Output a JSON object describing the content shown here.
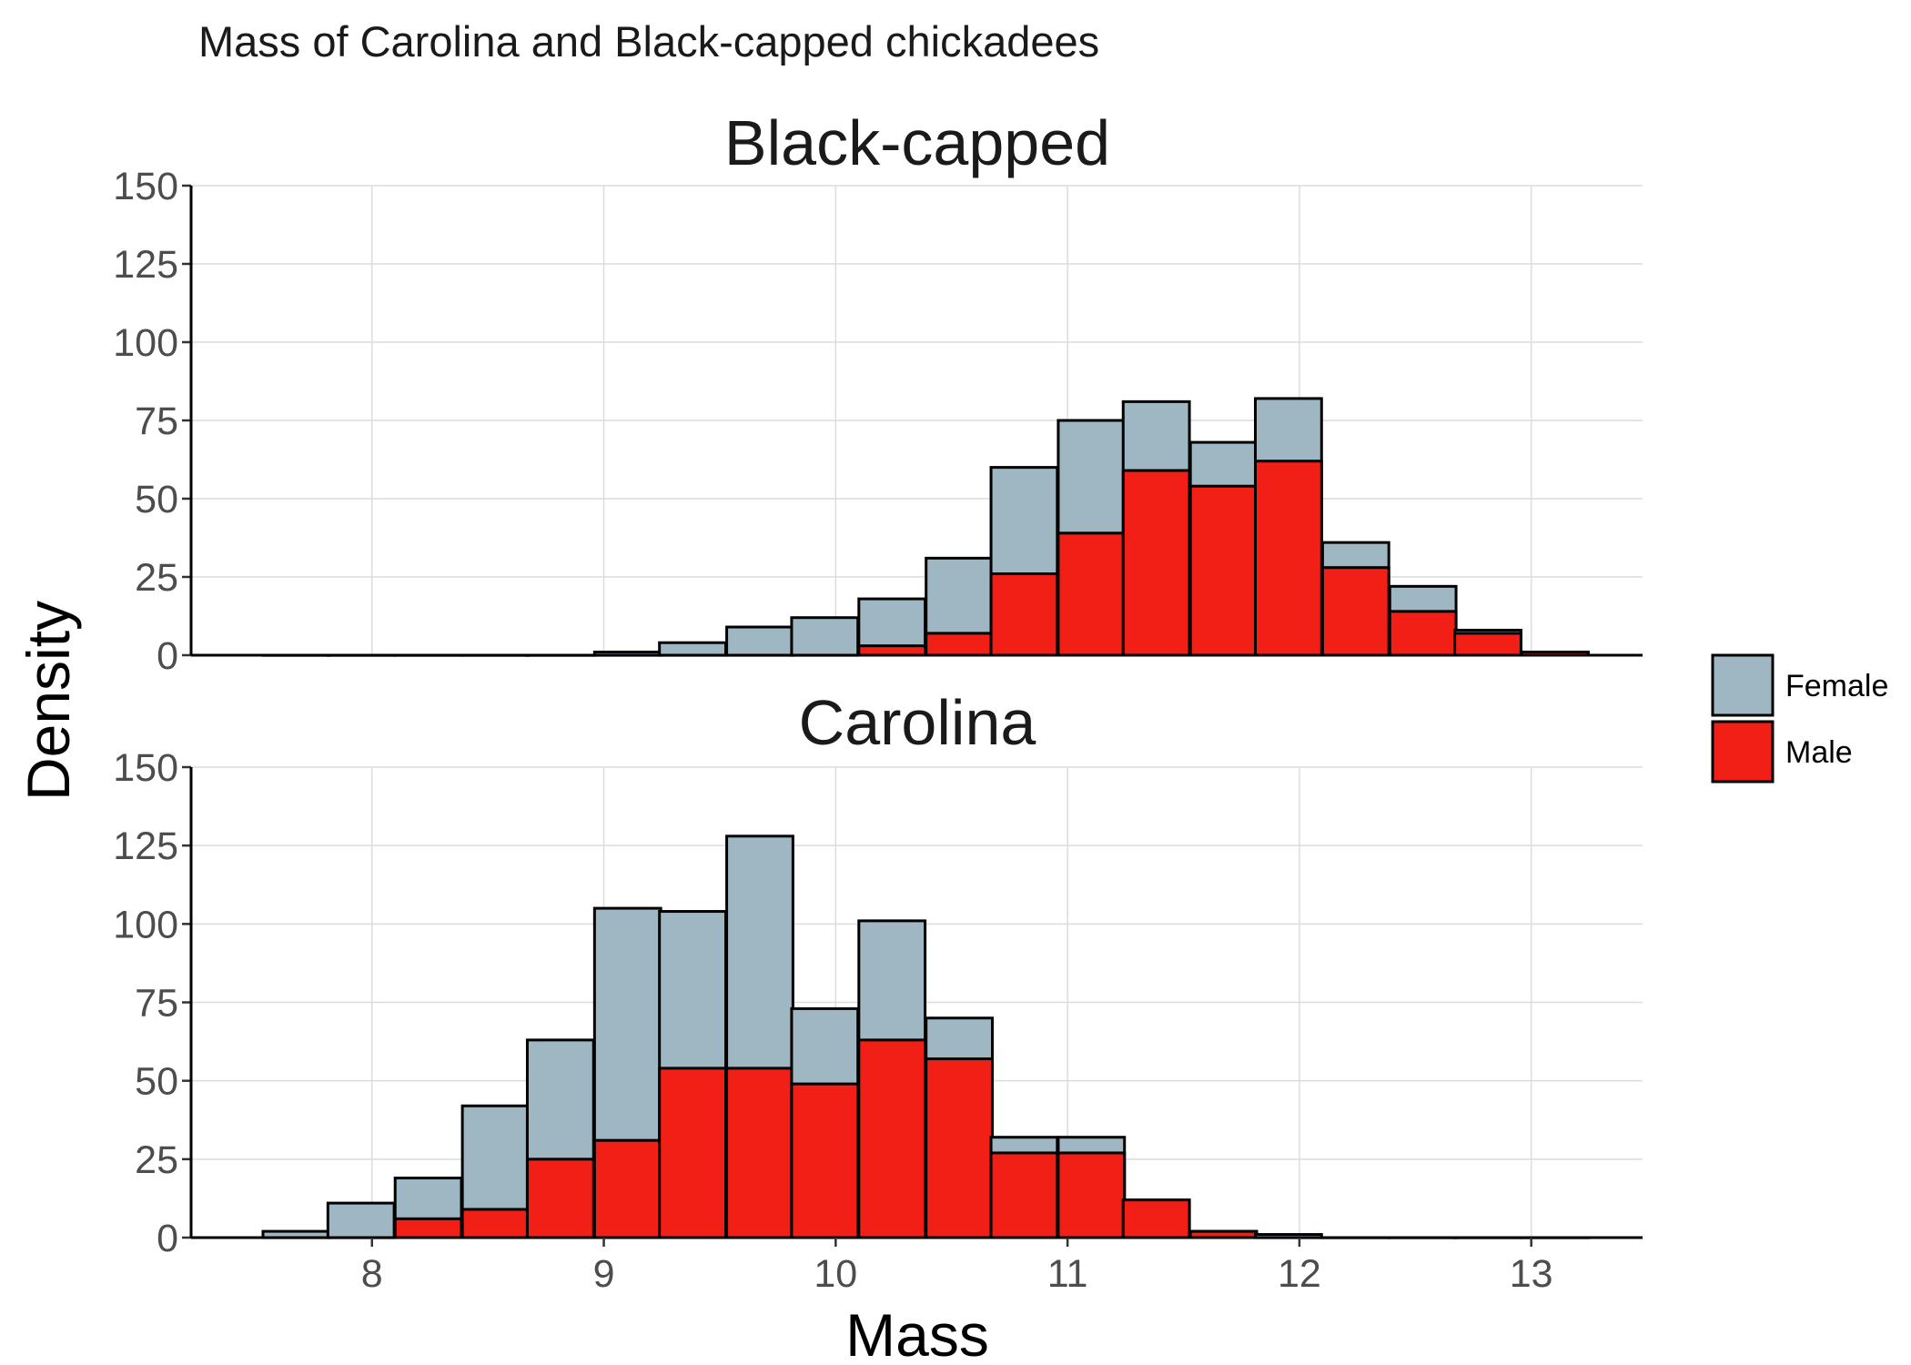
{
  "chart_data": {
    "type": "bar",
    "title": "Mass of Carolina and Black-capped chickadees",
    "xlabel": "Mass",
    "ylabel": "Density",
    "xlim": [
      7.22,
      13.48
    ],
    "ylim": [
      0,
      150
    ],
    "x_ticks": [
      "8",
      "9",
      "10",
      "11",
      "12",
      "13"
    ],
    "y_ticks": [
      "0",
      "25",
      "50",
      "75",
      "100",
      "125",
      "150"
    ],
    "grid": true,
    "stacked": true,
    "bin_width": 0.2857,
    "legend": {
      "position": "right",
      "entries": [
        {
          "name": "Female",
          "color": "#9fb6c3"
        },
        {
          "name": "Male",
          "color": "#f21f17"
        }
      ]
    },
    "facets": [
      {
        "title": "Black-capped",
        "bins": [
          {
            "x0": 7.53,
            "female": 0,
            "male": 0
          },
          {
            "x0": 7.81,
            "female": 0,
            "male": 0
          },
          {
            "x0": 8.1,
            "female": 0,
            "male": 0
          },
          {
            "x0": 8.39,
            "female": 0,
            "male": 0
          },
          {
            "x0": 8.67,
            "female": 0,
            "male": 0
          },
          {
            "x0": 8.96,
            "female": 1,
            "male": 0
          },
          {
            "x0": 9.24,
            "female": 4,
            "male": 0
          },
          {
            "x0": 9.53,
            "female": 9,
            "male": 0
          },
          {
            "x0": 9.81,
            "female": 12,
            "male": 0
          },
          {
            "x0": 10.1,
            "female": 15,
            "male": 3
          },
          {
            "x0": 10.39,
            "female": 24,
            "male": 7
          },
          {
            "x0": 10.67,
            "female": 34,
            "male": 26
          },
          {
            "x0": 10.96,
            "female": 36,
            "male": 39
          },
          {
            "x0": 11.24,
            "female": 22,
            "male": 59
          },
          {
            "x0": 11.53,
            "female": 14,
            "male": 54
          },
          {
            "x0": 11.81,
            "female": 20,
            "male": 62
          },
          {
            "x0": 12.1,
            "female": 8,
            "male": 28
          },
          {
            "x0": 12.39,
            "female": 8,
            "male": 14
          },
          {
            "x0": 12.67,
            "female": 1,
            "male": 7
          },
          {
            "x0": 12.96,
            "female": 0,
            "male": 1
          }
        ]
      },
      {
        "title": "Carolina",
        "bins": [
          {
            "x0": 7.53,
            "female": 2,
            "male": 0
          },
          {
            "x0": 7.81,
            "female": 11,
            "male": 0
          },
          {
            "x0": 8.1,
            "female": 13,
            "male": 6
          },
          {
            "x0": 8.39,
            "female": 33,
            "male": 9
          },
          {
            "x0": 8.67,
            "female": 38,
            "male": 25
          },
          {
            "x0": 8.96,
            "female": 74,
            "male": 31
          },
          {
            "x0": 9.24,
            "female": 50,
            "male": 54
          },
          {
            "x0": 9.53,
            "female": 74,
            "male": 54
          },
          {
            "x0": 9.81,
            "female": 24,
            "male": 49
          },
          {
            "x0": 10.1,
            "female": 38,
            "male": 63
          },
          {
            "x0": 10.39,
            "female": 13,
            "male": 57
          },
          {
            "x0": 10.67,
            "female": 5,
            "male": 27
          },
          {
            "x0": 10.96,
            "female": 5,
            "male": 27
          },
          {
            "x0": 11.24,
            "female": 0,
            "male": 12
          },
          {
            "x0": 11.53,
            "female": 0,
            "male": 2
          },
          {
            "x0": 11.81,
            "female": 1,
            "male": 0
          },
          {
            "x0": 12.1,
            "female": 0,
            "male": 0
          },
          {
            "x0": 12.39,
            "female": 0,
            "male": 0
          },
          {
            "x0": 12.67,
            "female": 0,
            "male": 0
          },
          {
            "x0": 12.96,
            "female": 0,
            "male": 0
          }
        ]
      }
    ]
  }
}
